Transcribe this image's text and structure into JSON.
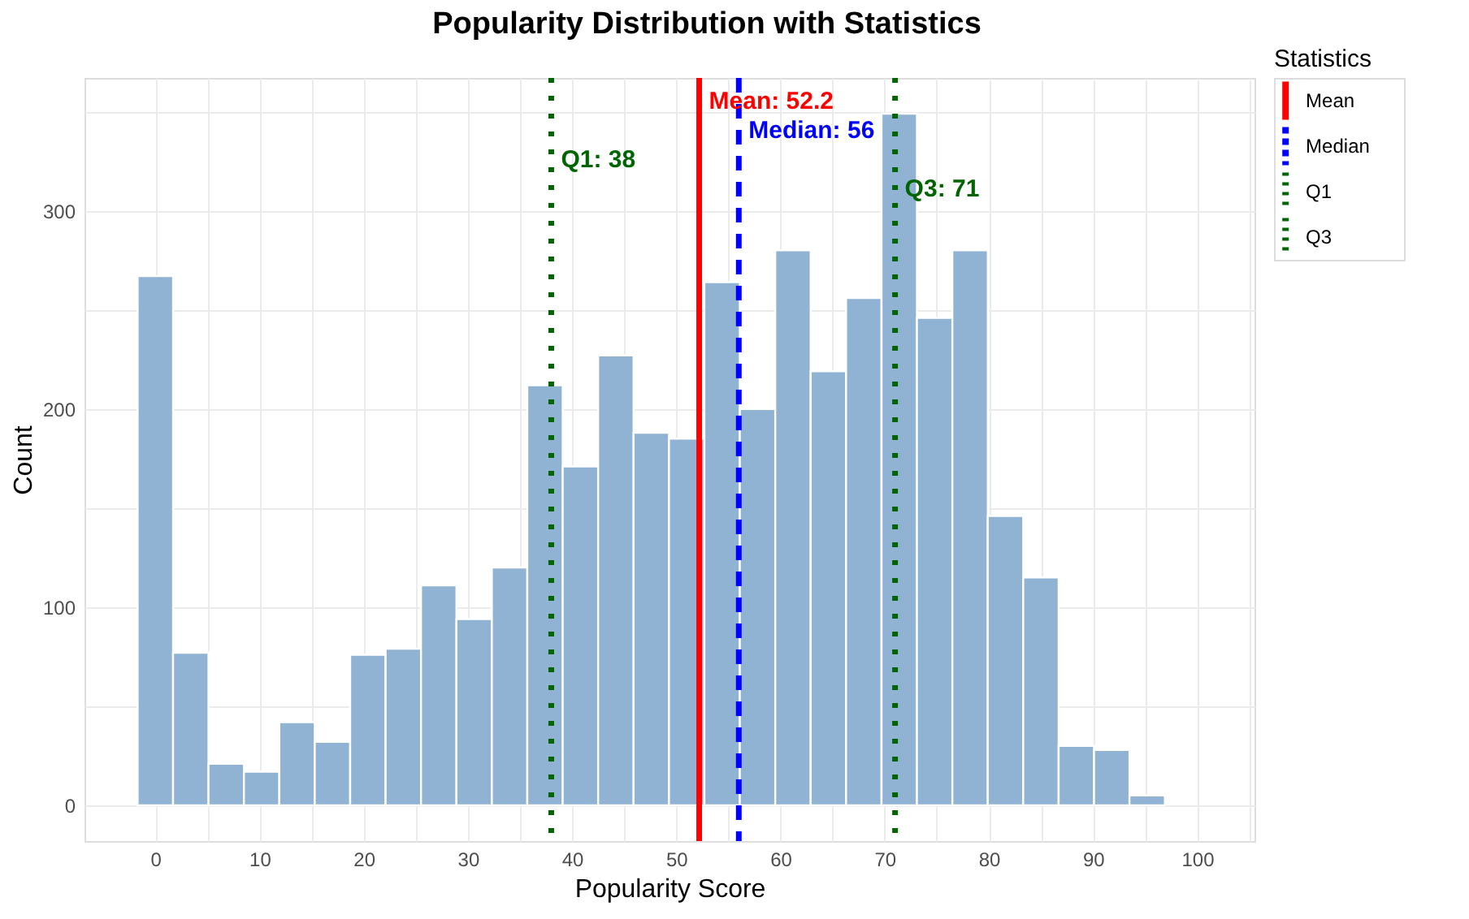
{
  "chart_data": {
    "type": "histogram",
    "title": "Popularity Distribution with Statistics",
    "xlabel": "Popularity Score",
    "ylabel": "Count",
    "legend_title": "Statistics",
    "bins": [
      -1.7,
      1.7,
      5.1,
      8.5,
      11.9,
      15.3,
      18.7,
      22.1,
      25.5,
      28.9,
      32.3,
      35.7,
      39.1,
      42.5,
      45.9,
      49.3,
      52.7,
      56.1,
      59.5,
      62.9,
      66.3,
      69.7,
      73.1,
      76.5,
      79.9,
      83.3,
      86.7,
      90.1,
      93.5,
      96.9
    ],
    "values": [
      267,
      77,
      21,
      17,
      42,
      32,
      76,
      79,
      111,
      94,
      120,
      212,
      171,
      227,
      188,
      185,
      264,
      200,
      280,
      219,
      256,
      349,
      246,
      280,
      146,
      115,
      30,
      28,
      5
    ],
    "color": "#91b3d3",
    "xlim": [
      -6.8,
      105.5
    ],
    "ylim": [
      -18,
      367
    ],
    "xticks": [
      0,
      {
        "value": 5,
        "label": null
      },
      10,
      {
        "value": 15,
        "label": null
      },
      20,
      {
        "value": 25,
        "label": null
      },
      30,
      {
        "value": 35,
        "label": null
      },
      40,
      {
        "value": 45,
        "label": null
      },
      50,
      {
        "value": 55,
        "label": null
      },
      60,
      {
        "value": 65,
        "label": null
      },
      70,
      {
        "value": 75,
        "label": null
      },
      80,
      {
        "value": 85,
        "label": null
      },
      90,
      {
        "value": 95,
        "label": null
      },
      100,
      {
        "value": 105,
        "label": null
      }
    ],
    "yticks": [
      0,
      {
        "value": 50,
        "label": null
      },
      100,
      {
        "value": 150,
        "label": null
      },
      200,
      {
        "value": 250,
        "label": null
      },
      300,
      {
        "value": 350,
        "label": null
      }
    ],
    "grid": true,
    "legend": "right",
    "ref_lines": [
      {
        "axis": "x",
        "value": 52.2,
        "label": "Mean: 52.2",
        "color": "#ff0000",
        "line_style": "solid"
      },
      {
        "axis": "x",
        "value": 56,
        "label": "Median: 56",
        "color": "#0000ff",
        "line_style": "dashed"
      },
      {
        "axis": "x",
        "value": 38,
        "label": "Q1: 38",
        "color": "#006400",
        "line_style": "dotted"
      },
      {
        "axis": "x",
        "value": 71,
        "label": "Q3: 71",
        "color": "#006400",
        "line_style": "dotted"
      }
    ],
    "annotations": [
      "Mean",
      "Median",
      "Q1",
      "Q3"
    ]
  }
}
